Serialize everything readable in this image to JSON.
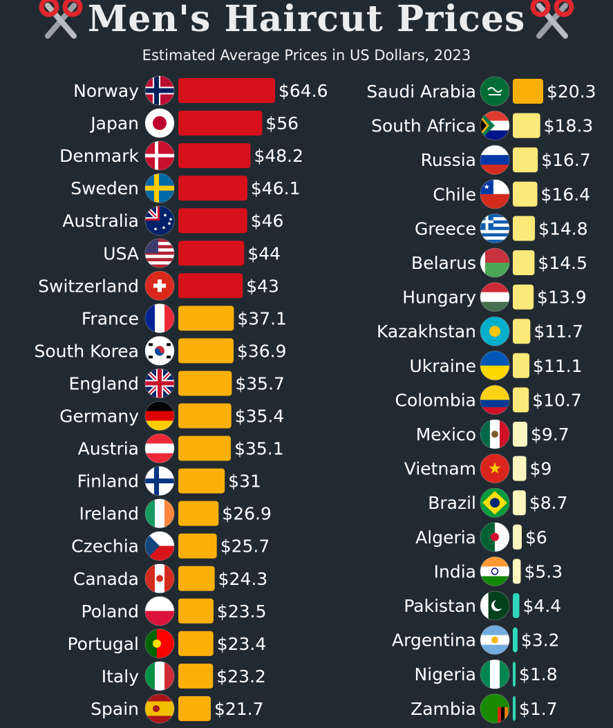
{
  "header": {
    "title": "Men's Haircut Prices",
    "subtitle": "Estimated Average Prices in US Dollars, 2023",
    "title_icon": "scissors-icon"
  },
  "colors": {
    "background": "#222a31",
    "tier_high": "#d6111c",
    "tier_mid": "#fbb009",
    "tier_low": "#fbe97a",
    "tier_lower": "#fcf6c0",
    "tier_lowest": "#2fd8b9"
  },
  "chart_data": {
    "type": "bar",
    "title": "Men's Haircut Prices",
    "subtitle": "Estimated Average Prices in US Dollars, 2023",
    "orientation": "horizontal",
    "value_prefix": "$",
    "columns": [
      {
        "categories": [
          "Norway",
          "Japan",
          "Denmark",
          "Sweden",
          "Australia",
          "USA",
          "Switzerland",
          "France",
          "South Korea",
          "England",
          "Germany",
          "Austria",
          "Finland",
          "Ireland",
          "Czechia",
          "Canada",
          "Poland",
          "Portugal",
          "Italy",
          "Spain"
        ],
        "values": [
          64.6,
          56,
          48.2,
          46.1,
          46,
          44,
          43,
          37.1,
          36.9,
          35.7,
          35.4,
          35.1,
          31,
          26.9,
          25.7,
          24.3,
          23.5,
          23.4,
          23.2,
          21.7
        ],
        "labels": [
          "$64.6",
          "$56",
          "$48.2",
          "$46.1",
          "$46",
          "$44",
          "$43",
          "$37.1",
          "$36.9",
          "$35.7",
          "$35.4",
          "$35.1",
          "$31",
          "$26.9",
          "$25.7",
          "$24.3",
          "$23.5",
          "$23.4",
          "$23.2",
          "$21.7"
        ]
      },
      {
        "categories": [
          "Saudi Arabia",
          "South Africa",
          "Russia",
          "Chile",
          "Greece",
          "Belarus",
          "Hungary",
          "Kazakhstan",
          "Ukraine",
          "Colombia",
          "Mexico",
          "Vietnam",
          "Brazil",
          "Algeria",
          "India",
          "Pakistan",
          "Argentina",
          "Nigeria",
          "Zambia"
        ],
        "values": [
          20.3,
          18.3,
          16.7,
          16.4,
          14.8,
          14.5,
          13.9,
          11.7,
          11.1,
          10.7,
          9.7,
          9,
          8.7,
          6,
          5.3,
          4.4,
          3.2,
          1.8,
          1.7
        ],
        "labels": [
          "$20.3",
          "$18.3",
          "$16.7",
          "$16.4",
          "$14.8",
          "$14.5",
          "$13.9",
          "$11.7",
          "$11.1",
          "$10.7",
          "$9.7",
          "$9",
          "$8.7",
          "$6",
          "$5.3",
          "$4.4",
          "$3.2",
          "$1.8",
          "$1.7"
        ]
      }
    ]
  }
}
